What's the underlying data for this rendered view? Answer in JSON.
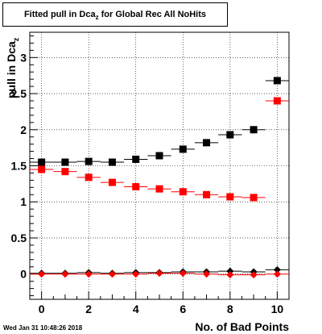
{
  "title": {
    "main": "Fitted pull in Dca",
    "sub": "z",
    "rest": " for Global Rec All NoHits"
  },
  "timestamp": "Wed Jan 31 10:48:26 2018",
  "chart_data": {
    "type": "scatter",
    "title": "Fitted pull in Dca_z for Global Rec All NoHits",
    "xlabel": "No. of Bad Points",
    "ylabel": "pull in Dca_z",
    "xlim": [
      -0.5,
      10.5
    ],
    "ylim": [
      -0.35,
      3.35
    ],
    "x_ticks": [
      0,
      2,
      4,
      6,
      8,
      10
    ],
    "y_ticks": [
      0,
      0.5,
      1,
      1.5,
      2,
      2.5,
      3
    ],
    "grid": true,
    "x_err": 0.5,
    "series": [
      {
        "color": "#000000",
        "marker": "square",
        "x": [
          0,
          1,
          2,
          3,
          4,
          5,
          6,
          7,
          8,
          9,
          10
        ],
        "values": [
          1.55,
          1.55,
          1.56,
          1.55,
          1.59,
          1.64,
          1.73,
          1.82,
          1.93,
          2.0,
          2.68
        ]
      },
      {
        "color": "#ff0000",
        "marker": "square",
        "x": [
          0,
          1,
          2,
          3,
          4,
          5,
          6,
          7,
          8,
          9,
          10
        ],
        "values": [
          1.45,
          1.42,
          1.34,
          1.27,
          1.21,
          1.18,
          1.14,
          1.1,
          1.07,
          1.06,
          2.4
        ]
      },
      {
        "color": "#000000",
        "marker": "diamond",
        "x": [
          0,
          1,
          2,
          3,
          4,
          5,
          6,
          7,
          8,
          9,
          10
        ],
        "values": [
          0.01,
          0.01,
          0.02,
          0.01,
          0.02,
          0.02,
          0.03,
          0.03,
          0.04,
          0.03,
          0.06
        ]
      },
      {
        "color": "#ff0000",
        "marker": "diamond",
        "x": [
          0,
          1,
          2,
          3,
          4,
          5,
          6,
          7,
          8,
          9,
          10
        ],
        "values": [
          0.0,
          0.0,
          0.0,
          0.0,
          0.0,
          0.01,
          0.01,
          0.0,
          -0.01,
          -0.01,
          0.0
        ]
      }
    ]
  }
}
